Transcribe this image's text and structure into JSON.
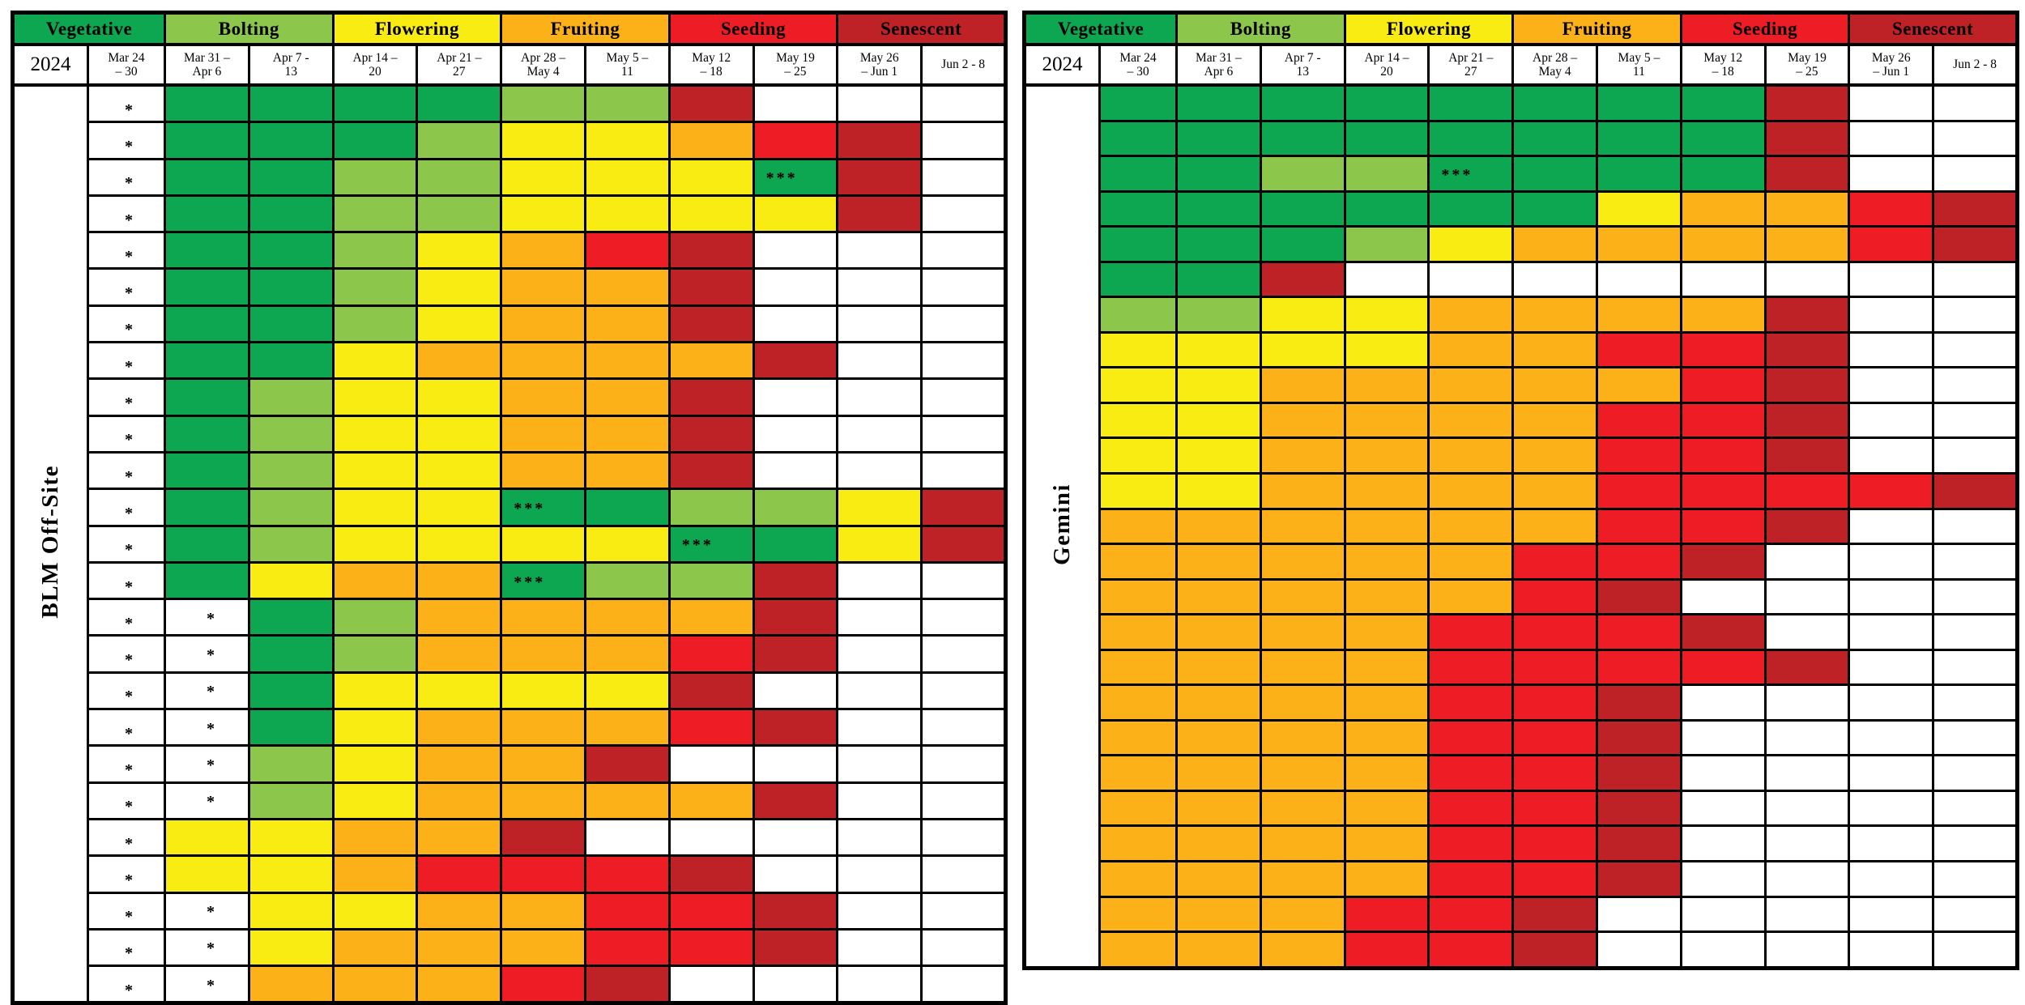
{
  "year": "2024",
  "legend": [
    {
      "key": "g",
      "label": "Vegetative",
      "color": "#0CA750"
    },
    {
      "key": "b",
      "label": "Bolting",
      "color": "#8CC74B"
    },
    {
      "key": "y",
      "label": "Flowering",
      "color": "#F9EC12"
    },
    {
      "key": "o",
      "label": "Fruiting",
      "color": "#FBB117"
    },
    {
      "key": "r",
      "label": "Seeding",
      "color": "#EE1C25"
    },
    {
      "key": "d",
      "label": "Senescent",
      "color": "#BE2126"
    }
  ],
  "weeks": [
    "Mar 24\n– 30",
    "Mar 31 –\nApr 6",
    "Apr 7 -\n13",
    "Apr 14 –\n20",
    "Apr 21 –\n27",
    "Apr 28 –\nMay 4",
    "May 5 –\n11",
    "May 12\n– 18",
    "May 19\n– 25",
    "May 26\n– Jun 1",
    "Jun 2 - 8"
  ],
  "cell_colors": {
    "g": "#0CA750",
    "b": "#8CC74B",
    "y": "#F9EC12",
    "o": "#FBB117",
    "r": "#EE1C25",
    "d": "#BE2126",
    "-": "#FFFFFF",
    "*": "#FFFFFF"
  },
  "markers": {
    "single": "*",
    "triple": "***"
  },
  "chart_data": {
    "type": "heatmap",
    "title": "2024 phenology stage by week",
    "x_categories": [
      "Mar 24 – 30",
      "Mar 31 – Apr 6",
      "Apr 7 - 13",
      "Apr 14 – 20",
      "Apr 21 – 27",
      "Apr 28 – May 4",
      "May 5 – 11",
      "May 12 – 18",
      "May 19 – 25",
      "May 26 – Jun 1",
      "Jun 2 - 8"
    ],
    "value_legend": [
      "g=Vegetative",
      "b=Bolting",
      "y=Flowering",
      "o=Fruiting",
      "r=Seeding",
      "d=Senescent",
      "-=empty",
      "*=asterisk in empty cell",
      "!=*** marker on cell"
    ],
    "legend_position": "top",
    "tables": [
      {
        "site": "BLM Off-Site",
        "year": "2024",
        "rows": [
          [
            "*",
            "g",
            "g",
            "g",
            "g",
            "b",
            "b",
            "d",
            "-",
            "-",
            "-"
          ],
          [
            "*",
            "g",
            "g",
            "g",
            "b",
            "y",
            "y",
            "o",
            "r",
            "d",
            "-"
          ],
          [
            "*",
            "g",
            "g",
            "b",
            "b",
            "y",
            "y",
            "y",
            "g!",
            "d",
            "-"
          ],
          [
            "*",
            "g",
            "g",
            "b",
            "b",
            "y",
            "y",
            "y",
            "y",
            "d",
            "-"
          ],
          [
            "*",
            "g",
            "g",
            "b",
            "y",
            "o",
            "r",
            "d",
            "-",
            "-",
            "-"
          ],
          [
            "*",
            "g",
            "g",
            "b",
            "y",
            "o",
            "o",
            "d",
            "-",
            "-",
            "-"
          ],
          [
            "*",
            "g",
            "g",
            "b",
            "y",
            "o",
            "o",
            "d",
            "-",
            "-",
            "-"
          ],
          [
            "*",
            "g",
            "g",
            "y",
            "o",
            "o",
            "o",
            "o",
            "d",
            "-",
            "-"
          ],
          [
            "*",
            "g",
            "b",
            "y",
            "y",
            "o",
            "o",
            "d",
            "-",
            "-",
            "-"
          ],
          [
            "*",
            "g",
            "b",
            "y",
            "y",
            "o",
            "o",
            "d",
            "-",
            "-",
            "-"
          ],
          [
            "*",
            "g",
            "b",
            "y",
            "y",
            "o",
            "o",
            "d",
            "-",
            "-",
            "-"
          ],
          [
            "*",
            "g",
            "b",
            "y",
            "y",
            "g!",
            "g",
            "b",
            "b",
            "y",
            "d"
          ],
          [
            "*",
            "g",
            "b",
            "y",
            "y",
            "y",
            "y",
            "g!",
            "g",
            "y",
            "d"
          ],
          [
            "*",
            "g",
            "y",
            "o",
            "o",
            "g!",
            "b",
            "b",
            "d",
            "-",
            "-"
          ],
          [
            "*",
            "*",
            "g",
            "b",
            "o",
            "o",
            "o",
            "o",
            "d",
            "-",
            "-"
          ],
          [
            "*",
            "*",
            "g",
            "b",
            "o",
            "o",
            "o",
            "r",
            "d",
            "-",
            "-"
          ],
          [
            "*",
            "*",
            "g",
            "y",
            "y",
            "y",
            "y",
            "d",
            "-",
            "-",
            "-"
          ],
          [
            "*",
            "*",
            "g",
            "y",
            "o",
            "o",
            "o",
            "r",
            "d",
            "-",
            "-"
          ],
          [
            "*",
            "*",
            "b",
            "y",
            "o",
            "o",
            "d",
            "-",
            "-",
            "-",
            "-"
          ],
          [
            "*",
            "*",
            "b",
            "y",
            "o",
            "o",
            "o",
            "o",
            "d",
            "-",
            "-"
          ],
          [
            "*",
            "y",
            "y",
            "o",
            "o",
            "d",
            "-",
            "-",
            "-",
            "-",
            "-"
          ],
          [
            "*",
            "y",
            "y",
            "o",
            "r",
            "r",
            "r",
            "d",
            "-",
            "-",
            "-"
          ],
          [
            "*",
            "*",
            "y",
            "y",
            "o",
            "o",
            "r",
            "r",
            "d",
            "-",
            "-"
          ],
          [
            "*",
            "*",
            "y",
            "o",
            "o",
            "o",
            "r",
            "r",
            "d",
            "-",
            "-"
          ],
          [
            "*",
            "*",
            "o",
            "o",
            "o",
            "r",
            "d",
            "-",
            "-",
            "-",
            "-"
          ]
        ]
      },
      {
        "site": "Gemini",
        "year": "2024",
        "rows": [
          [
            "g",
            "g",
            "g",
            "g",
            "g",
            "g",
            "g",
            "g",
            "d",
            "-",
            "-"
          ],
          [
            "g",
            "g",
            "g",
            "g",
            "g",
            "g",
            "g",
            "g",
            "d",
            "-",
            "-"
          ],
          [
            "g",
            "g",
            "b",
            "b",
            "g!",
            "g",
            "g",
            "g",
            "d",
            "-",
            "-"
          ],
          [
            "g",
            "g",
            "g",
            "g",
            "g",
            "g",
            "y",
            "o",
            "o",
            "r",
            "d"
          ],
          [
            "g",
            "g",
            "g",
            "b",
            "y",
            "o",
            "o",
            "o",
            "o",
            "r",
            "d"
          ],
          [
            "g",
            "g",
            "d",
            "-",
            "-",
            "-",
            "-",
            "-",
            "-",
            "-",
            "-"
          ],
          [
            "b",
            "b",
            "y",
            "y",
            "o",
            "o",
            "o",
            "o",
            "d",
            "-",
            "-"
          ],
          [
            "y",
            "y",
            "y",
            "y",
            "o",
            "o",
            "r",
            "r",
            "d",
            "-",
            "-"
          ],
          [
            "y",
            "y",
            "o",
            "o",
            "o",
            "o",
            "o",
            "r",
            "d",
            "-",
            "-"
          ],
          [
            "y",
            "y",
            "o",
            "o",
            "o",
            "o",
            "r",
            "r",
            "d",
            "-",
            "-"
          ],
          [
            "y",
            "y",
            "o",
            "o",
            "o",
            "o",
            "r",
            "r",
            "d",
            "-",
            "-"
          ],
          [
            "y",
            "y",
            "o",
            "o",
            "o",
            "o",
            "r",
            "r",
            "r",
            "r",
            "d"
          ],
          [
            "o",
            "o",
            "o",
            "o",
            "o",
            "o",
            "r",
            "r",
            "d",
            "-",
            "-"
          ],
          [
            "o",
            "o",
            "o",
            "o",
            "o",
            "r",
            "r",
            "d",
            "-",
            "-",
            "-"
          ],
          [
            "o",
            "o",
            "o",
            "o",
            "o",
            "r",
            "d",
            "-",
            "-",
            "-",
            "-"
          ],
          [
            "o",
            "o",
            "o",
            "o",
            "r",
            "r",
            "r",
            "d",
            "-",
            "-",
            "-"
          ],
          [
            "o",
            "o",
            "o",
            "o",
            "r",
            "r",
            "r",
            "r",
            "d",
            "-",
            "-"
          ],
          [
            "o",
            "o",
            "o",
            "o",
            "r",
            "r",
            "d",
            "-",
            "-",
            "-",
            "-"
          ],
          [
            "o",
            "o",
            "o",
            "o",
            "r",
            "r",
            "d",
            "-",
            "-",
            "-",
            "-"
          ],
          [
            "o",
            "o",
            "o",
            "o",
            "r",
            "r",
            "d",
            "-",
            "-",
            "-",
            "-"
          ],
          [
            "o",
            "o",
            "o",
            "o",
            "r",
            "r",
            "d",
            "-",
            "-",
            "-",
            "-"
          ],
          [
            "o",
            "o",
            "o",
            "o",
            "r",
            "r",
            "d",
            "-",
            "-",
            "-",
            "-"
          ],
          [
            "o",
            "o",
            "o",
            "o",
            "r",
            "r",
            "d",
            "-",
            "-",
            "-",
            "-"
          ],
          [
            "o",
            "o",
            "o",
            "r",
            "r",
            "d",
            "-",
            "-",
            "-",
            "-",
            "-"
          ],
          [
            "o",
            "o",
            "o",
            "r",
            "r",
            "d",
            "-",
            "-",
            "-",
            "-",
            "-"
          ]
        ]
      }
    ]
  }
}
